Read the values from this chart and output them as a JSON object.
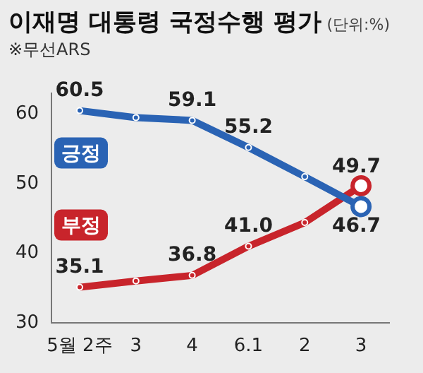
{
  "chart_data": {
    "type": "line",
    "title": "이재명 대통령 국정수행 평가",
    "subtitle": "(단위:%)",
    "annotations": [
      "※무선ARS"
    ],
    "categories": [
      "5월 2주",
      "3",
      "4",
      "6.1",
      "2",
      "3"
    ],
    "series": [
      {
        "name": "긍정",
        "color": "#2a63b4",
        "values": [
          60.5,
          59.5,
          59.1,
          55.2,
          51.0,
          46.7
        ],
        "value_labels": [
          "60.5",
          null,
          "59.1",
          "55.2",
          null,
          "46.7"
        ]
      },
      {
        "name": "부정",
        "color": "#c8242b",
        "values": [
          35.1,
          36.0,
          36.8,
          41.0,
          44.4,
          49.7
        ],
        "value_labels": [
          "35.1",
          null,
          "36.8",
          "41.0",
          null,
          "49.7"
        ]
      }
    ],
    "ylim": [
      30,
      63
    ],
    "yticks": [
      30,
      40,
      50,
      60
    ],
    "grid": false,
    "legend": false,
    "marker": "circle",
    "line_style": "solid"
  }
}
